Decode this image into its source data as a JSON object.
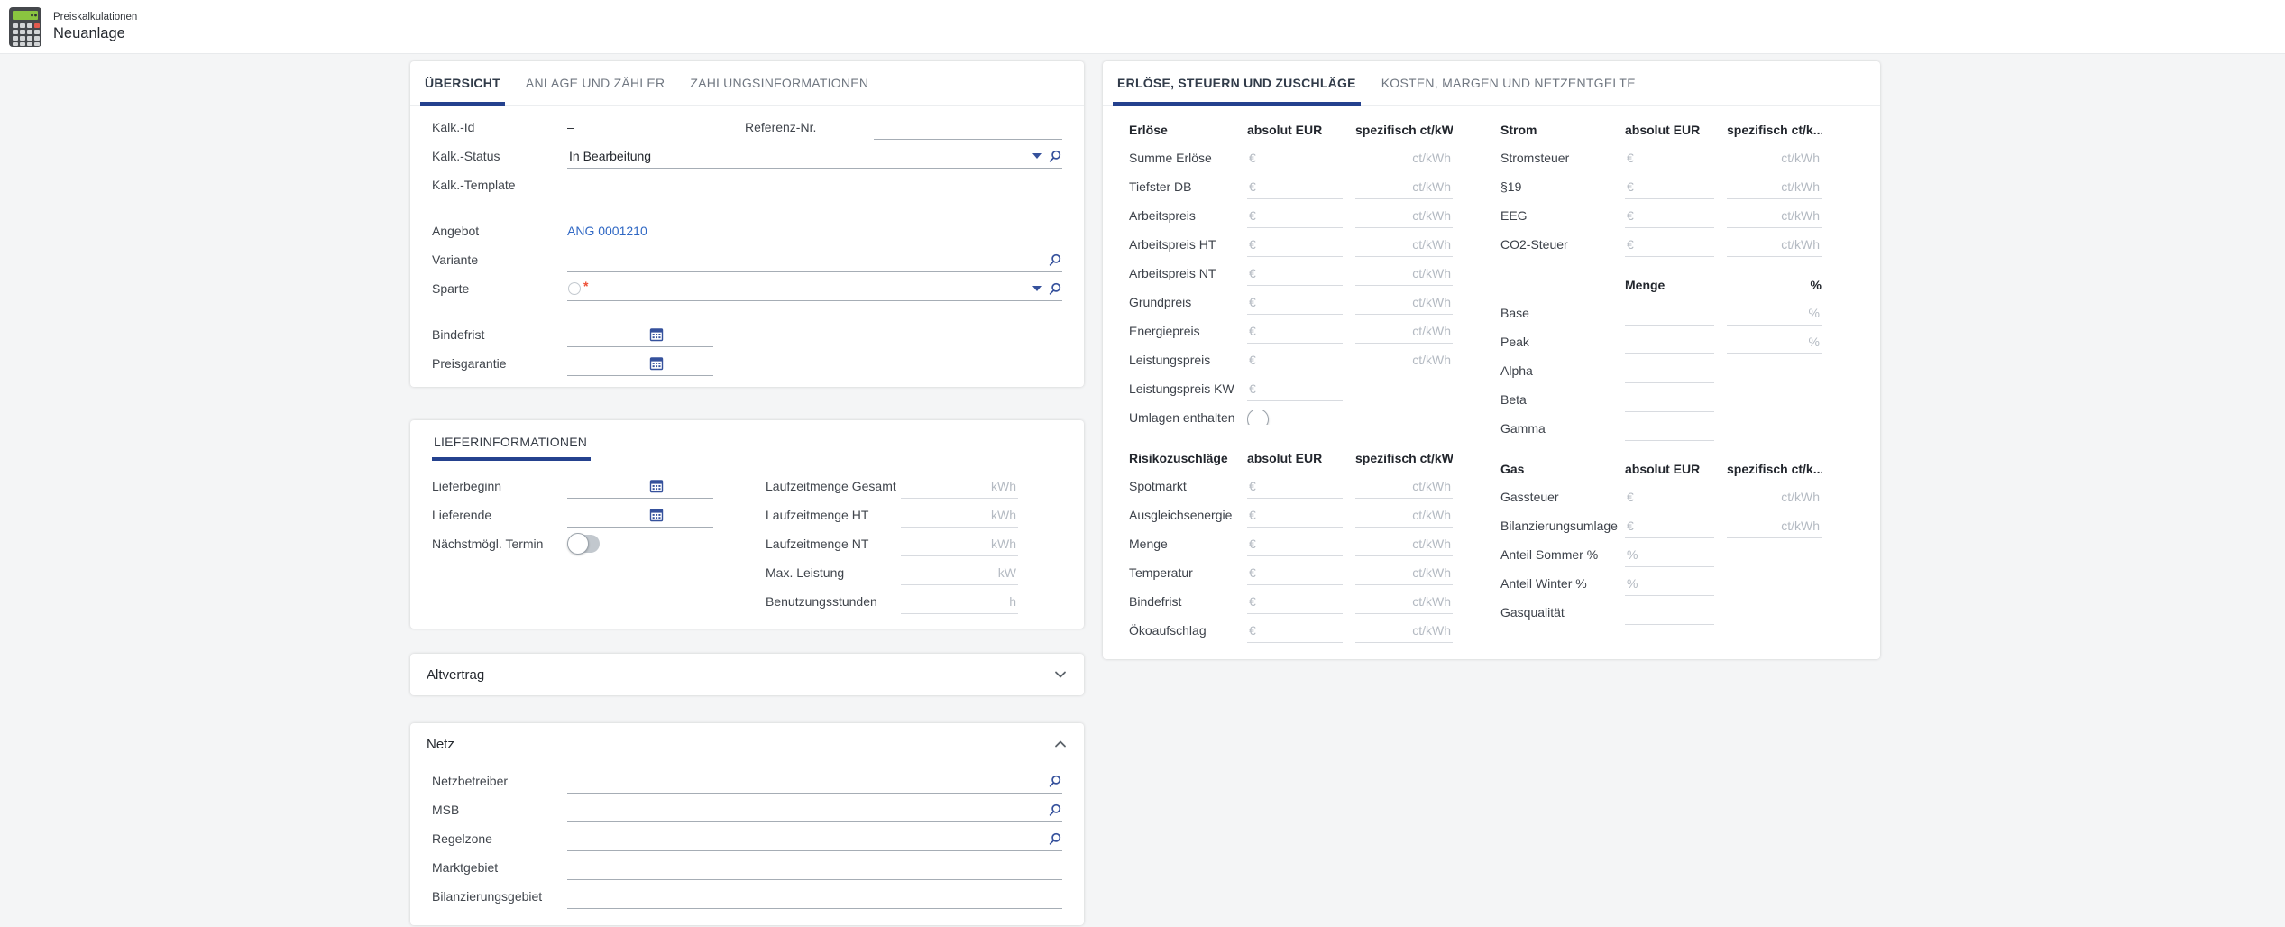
{
  "header": {
    "subtitle": "Preiskalkulationen",
    "title": "Neuanlage",
    "icon": "calculator-icon"
  },
  "colors": {
    "accent": "#24418e",
    "icon": "#35519c",
    "link": "#3068c4",
    "required": "#ee4f35"
  },
  "left": {
    "tabs": [
      {
        "label": "ÜBERSICHT",
        "active": true
      },
      {
        "label": "ANLAGE UND ZÄHLER",
        "active": false
      },
      {
        "label": "ZAHLUNGSINFORMATIONEN",
        "active": false
      }
    ],
    "overview": {
      "kalk_id": {
        "label": "Kalk.-Id",
        "value": "–"
      },
      "referenz": {
        "label": "Referenz-Nr."
      },
      "kalk_status": {
        "label": "Kalk.-Status",
        "value": "In Bearbeitung"
      },
      "kalk_template": {
        "label": "Kalk.-Template"
      },
      "angebot": {
        "label": "Angebot",
        "value": "ANG 0001210"
      },
      "variante": {
        "label": "Variante"
      },
      "sparte": {
        "label": "Sparte",
        "required": "*"
      },
      "bindefrist": {
        "label": "Bindefrist"
      },
      "preisgarantie": {
        "label": "Preisgarantie"
      }
    },
    "lieferinformationen": {
      "title": "LIEFERINFORMATIONEN",
      "lieferbeginn": "Lieferbeginn",
      "lieferende": "Lieferende",
      "naechstmoegl": "Nächstmögl. Termin",
      "right_rows": [
        {
          "label": "Laufzeitmenge Gesamt",
          "unit": "kWh"
        },
        {
          "label": "Laufzeitmenge HT",
          "unit": "kWh"
        },
        {
          "label": "Laufzeitmenge NT",
          "unit": "kWh"
        },
        {
          "label": "Max. Leistung",
          "unit": "kW"
        },
        {
          "label": "Benutzungsstunden",
          "unit": "h"
        }
      ]
    },
    "altvertrag": {
      "title": "Altvertrag"
    },
    "netz": {
      "title": "Netz",
      "rows": [
        {
          "label": "Netzbetreiber",
          "search": true
        },
        {
          "label": "MSB",
          "search": true
        },
        {
          "label": "Regelzone",
          "search": true
        },
        {
          "label": "Marktgebiet",
          "search": false
        },
        {
          "label": "Bilanzierungsgebiet",
          "search": false
        }
      ]
    }
  },
  "right_card": {
    "tabs": [
      {
        "label": "ERLÖSE, STEUERN UND ZUSCHLÄGE",
        "active": true
      },
      {
        "label": "KOSTEN, MARGEN UND NETZENTGELTE",
        "active": false
      }
    ],
    "columns": [
      {
        "groups": [
          {
            "title": "Erlöse",
            "col2_header": "absolut EUR",
            "col3_header": "spezifisch ct/kWh",
            "col3_right": false,
            "rows": [
              {
                "label": "Summe Erlöse",
                "field1": "€",
                "field2": "ct/kWh"
              },
              {
                "label": "Tiefster DB",
                "field1": "€",
                "field2": "ct/kWh"
              },
              {
                "label": "Arbeitspreis",
                "field1": "€",
                "field2": "ct/kWh"
              },
              {
                "label": "Arbeitspreis HT",
                "field1": "€",
                "field2": "ct/kWh"
              },
              {
                "label": "Arbeitspreis NT",
                "field1": "€",
                "field2": "ct/kWh"
              },
              {
                "label": "Grundpreis",
                "field1": "€",
                "field2": "ct/kWh"
              },
              {
                "label": "Energiepreis",
                "field1": "€",
                "field2": "ct/kWh"
              },
              {
                "label": "Leistungspreis",
                "field1": "€",
                "field2": "ct/kWh"
              },
              {
                "label": "Leistungspreis KW",
                "field1": "€"
              },
              {
                "label": "Umlagen enthalten",
                "toggle": true
              }
            ]
          },
          {
            "title": "Risikozuschläge",
            "col2_header": "absolut EUR",
            "col3_header": "spezifisch ct/kWh",
            "col3_right": false,
            "rows": [
              {
                "label": "Spotmarkt",
                "field1": "€",
                "field2": "ct/kWh"
              },
              {
                "label": "Ausgleichsenergie",
                "field1": "€",
                "field2": "ct/kWh"
              },
              {
                "label": "Menge",
                "field1": "€",
                "field2": "ct/kWh"
              },
              {
                "label": "Temperatur",
                "field1": "€",
                "field2": "ct/kWh"
              },
              {
                "label": "Bindefrist",
                "field1": "€",
                "field2": "ct/kWh"
              },
              {
                "label": "Ökoaufschlag",
                "field1": "€",
                "field2": "ct/kWh"
              }
            ]
          }
        ]
      },
      {
        "groups": [
          {
            "title": "Strom",
            "col2_header": "absolut EUR",
            "col3_header": "spezifisch ct/k...",
            "col3_right": false,
            "rows": [
              {
                "label": "Stromsteuer",
                "field1": "€",
                "field2": "ct/kWh"
              },
              {
                "label": "§19",
                "field1": "€",
                "field2": "ct/kWh"
              },
              {
                "label": "EEG",
                "field1": "€",
                "field2": "ct/kWh"
              },
              {
                "label": "CO2-Steuer",
                "field1": "€",
                "field2": "ct/kWh"
              }
            ]
          },
          {
            "title": "",
            "col2_header": "Menge",
            "col3_header": "%",
            "col3_right": true,
            "rows": [
              {
                "label": "Base",
                "field1": "",
                "field2": "%"
              },
              {
                "label": "Peak",
                "field1": "",
                "field2": "%"
              },
              {
                "label": "Alpha",
                "field1": ""
              },
              {
                "label": "Beta",
                "field1": ""
              },
              {
                "label": "Gamma",
                "field1": ""
              }
            ]
          },
          {
            "title": "Gas",
            "col2_header": "absolut EUR",
            "col3_header": "spezifisch ct/k...",
            "col3_right": false,
            "rows": [
              {
                "label": "Gassteuer",
                "field1": "€",
                "field2": "ct/kWh"
              },
              {
                "label": "Bilanzierungsumlage",
                "field1": "€",
                "field2": "ct/kWh"
              },
              {
                "label": "Anteil Sommer %",
                "field1": "%"
              },
              {
                "label": "Anteil Winter %",
                "field1": "%"
              },
              {
                "label": "Gasqualität",
                "field1": ""
              }
            ]
          }
        ]
      }
    ]
  }
}
